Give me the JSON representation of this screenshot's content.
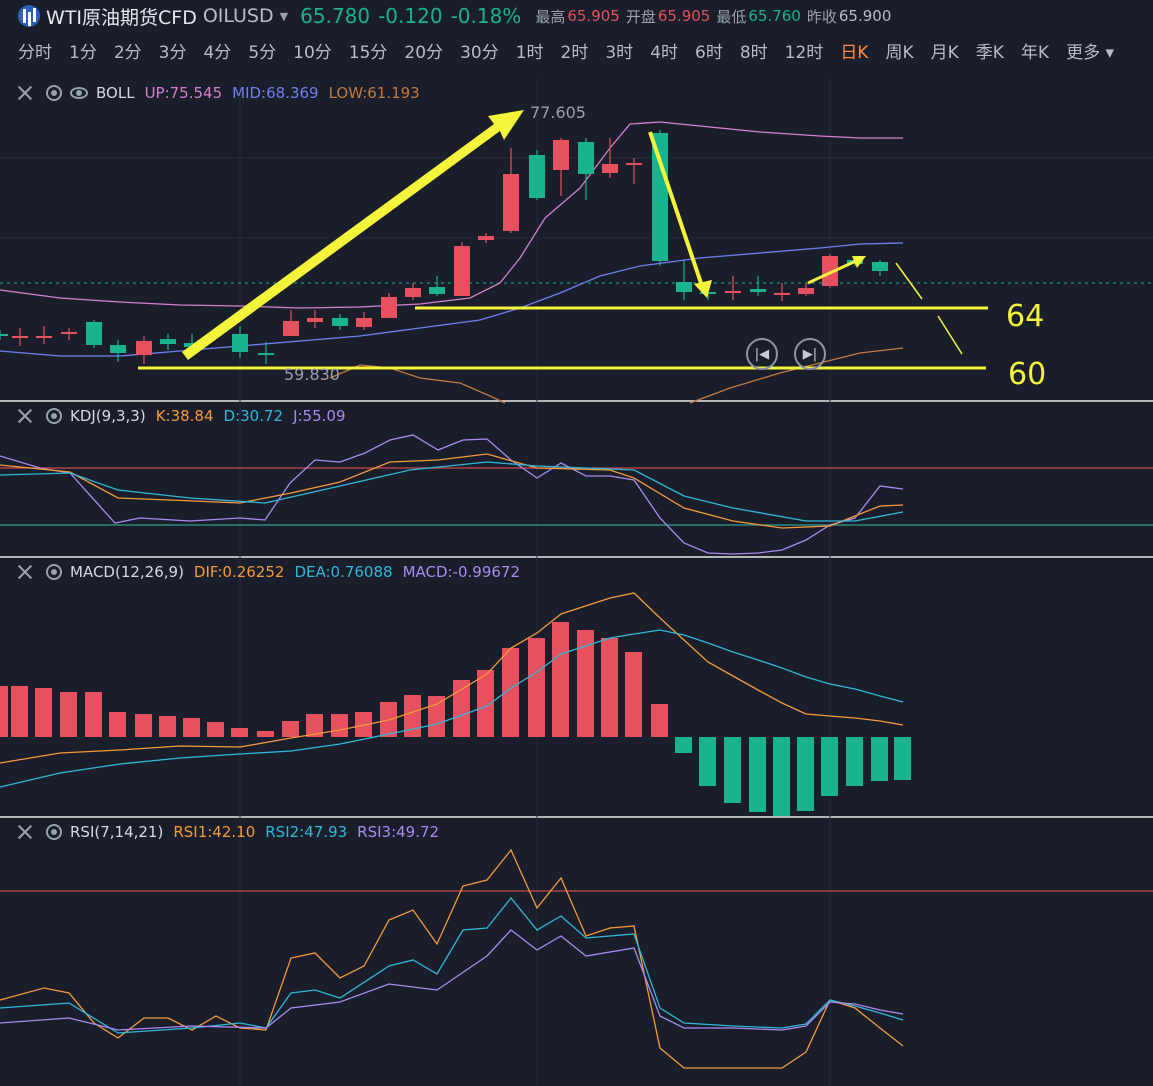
{
  "header": {
    "title": "WTI原油期货CFD",
    "symbol": "OILUSD",
    "price": "65.780",
    "change": "-0.120",
    "change_pct": "-0.18%",
    "high_label": "最高",
    "high": "65.905",
    "open_label": "开盘",
    "open": "65.905",
    "low_label": "最低",
    "low": "65.760",
    "prev_label": "昨收",
    "prev": "65.900"
  },
  "timeframes": [
    "分时",
    "1分",
    "2分",
    "3分",
    "4分",
    "5分",
    "10分",
    "15分",
    "20分",
    "30分",
    "1时",
    "2时",
    "3时",
    "4时",
    "6时",
    "8时",
    "12时",
    "日K",
    "周K",
    "月K",
    "季K",
    "年K",
    "更多"
  ],
  "active_timeframe": "日K",
  "boll": {
    "name": "BOLL",
    "up": "UP:75.545",
    "mid": "MID:68.369",
    "low": "LOW:61.193"
  },
  "kdj": {
    "name": "KDJ(9,3,3)",
    "k": "K:38.84",
    "d": "D:30.72",
    "j": "J:55.09"
  },
  "macd": {
    "name": "MACD(12,26,9)",
    "dif": "DIF:0.26252",
    "dea": "DEA:0.76088",
    "macd": "MACD:-0.99672"
  },
  "rsi": {
    "name": "RSI(7,14,21)",
    "r1": "RSI1:42.10",
    "r2": "RSI2:47.93",
    "r3": "RSI3:49.72"
  },
  "annotations": {
    "high_marker": "77.605",
    "low_marker": "59.830",
    "level_64": "64",
    "level_60": "60"
  },
  "colors": {
    "up": "#e5515f",
    "down": "#19b48e",
    "boll_up": "#d67fd0",
    "boll_mid": "#6f7ff0",
    "boll_low": "#c27a3f",
    "k": "#f59a3a",
    "d": "#2fb8d8",
    "j": "#a98bf0",
    "annotation": "#f4f53a"
  },
  "icons": {
    "close": "close-icon",
    "settings": "gear-icon",
    "visibility": "eye-icon",
    "prev": "prev-icon",
    "next": "next-icon"
  }
}
